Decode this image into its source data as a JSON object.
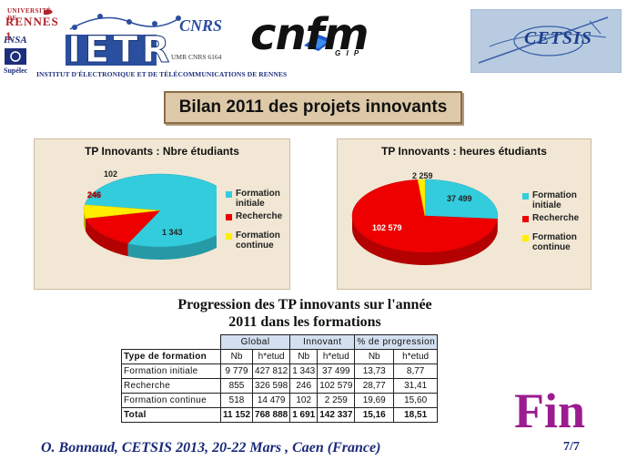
{
  "logos": {
    "rennes_small": "UNIVERSITÉ DE",
    "rennes": "RENNES 1",
    "insa": "INSA",
    "supelec": "Supélec",
    "ietr": "IETR",
    "institut": "INSTITUT D'ÉLECTRONIQUE ET DE TÉLÉCOMMUNICATIONS DE RENNES",
    "cnrs": "CNRS",
    "umr": "UMR CNRS 6164",
    "cnfm": "cnfm",
    "gip": "G I P",
    "cetsis": "CETSIS"
  },
  "title": "Bilan 2011 des projets innovants",
  "chart_data": [
    {
      "type": "pie",
      "title": "TP Innovants : Nbre étudiants",
      "categories": [
        "Formation initiale",
        "Recherche",
        "Formation continue"
      ],
      "values": [
        1343,
        246,
        102
      ],
      "labels": [
        "1 343",
        "246",
        "102"
      ],
      "colors": [
        "#33ccdd",
        "#ee0000",
        "#ffee00"
      ],
      "legend": "right"
    },
    {
      "type": "pie",
      "title": "TP Innovants : heures étudiants",
      "categories": [
        "Formation initiale",
        "Recherche",
        "Formation continue"
      ],
      "values": [
        37499,
        102579,
        2259
      ],
      "labels": [
        "37 499",
        "102 579",
        "2 259"
      ],
      "colors": [
        "#33ccdd",
        "#ee0000",
        "#ffee00"
      ],
      "legend": "right"
    }
  ],
  "legend_items": [
    {
      "label": "Formation initiale",
      "color": "#33ccdd"
    },
    {
      "label": "Recherche",
      "color": "#ee0000"
    },
    {
      "label": "Formation continue",
      "color": "#ffee00"
    }
  ],
  "progression": {
    "title_line1": "Progression des TP innovants sur l'année",
    "title_line2": "2011 dans les formations"
  },
  "table": {
    "groups": [
      "Global",
      "Innovant",
      "% de progression"
    ],
    "first_col": "Type de formation",
    "sub": [
      "Nb",
      "h*etud",
      "Nb",
      "h*etud",
      "Nb",
      "h*etud"
    ],
    "rows": [
      {
        "label": "Formation initiale",
        "cells": [
          "9 779",
          "427 812",
          "1 343",
          "37 499",
          "13,73",
          "8,77"
        ]
      },
      {
        "label": "Recherche",
        "cells": [
          "855",
          "326 598",
          "246",
          "102 579",
          "28,77",
          "31,41"
        ]
      },
      {
        "label": "Formation continue",
        "cells": [
          "518",
          "14 479",
          "102",
          "2 259",
          "19,69",
          "15,60"
        ]
      },
      {
        "label": "Total",
        "cells": [
          "11 152",
          "768 888",
          "1 691",
          "142 337",
          "15,16",
          "18,51"
        ]
      }
    ]
  },
  "fin": "Fin",
  "footer": "O. Bonnaud, CETSIS 2013, 20-22 Mars , Caen (France)",
  "page": "7/7"
}
